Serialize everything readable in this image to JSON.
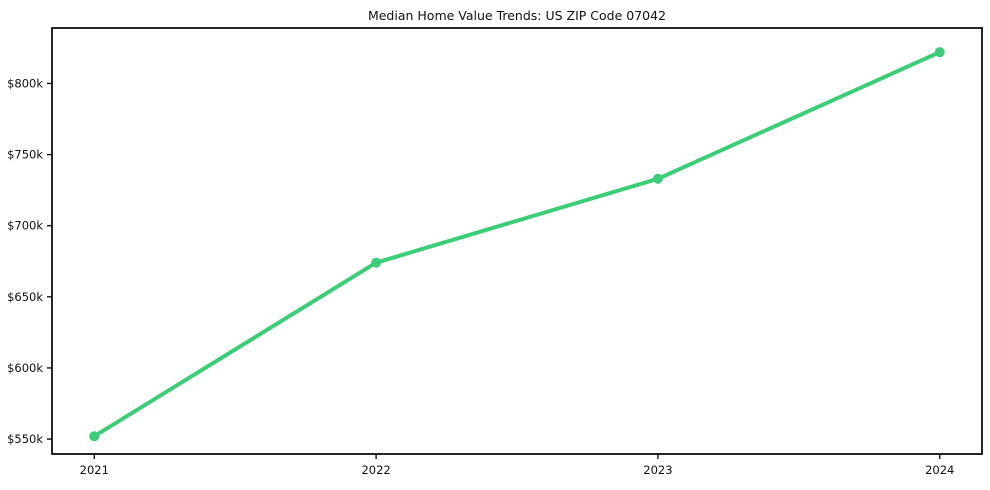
{
  "title": "Median Home Value Trends: US ZIP Code 07042",
  "chart_data": {
    "type": "line",
    "title": "Median Home Value Trends: US ZIP Code 07042",
    "x": [
      2021,
      2022,
      2023,
      2024
    ],
    "x_tick_labels": [
      "2021",
      "2022",
      "2023",
      "2024"
    ],
    "series": [
      {
        "name": "Median home value",
        "values": [
          552000,
          674000,
          733000,
          822000
        ]
      }
    ],
    "y_ticks": [
      550000,
      600000,
      650000,
      700000,
      750000,
      800000
    ],
    "y_tick_labels": [
      "$550k",
      "$600k",
      "$650k",
      "$700k",
      "$750k",
      "$800k"
    ],
    "xlim": [
      2020.85,
      2024.15
    ],
    "ylim": [
      539500,
      839000
    ],
    "xlabel": "",
    "ylabel": "",
    "grid": false,
    "legend_position": "none",
    "line_color": "#3ccd78",
    "marker": "circle",
    "frame_color": "#000000",
    "background_color": "#ffffff"
  }
}
